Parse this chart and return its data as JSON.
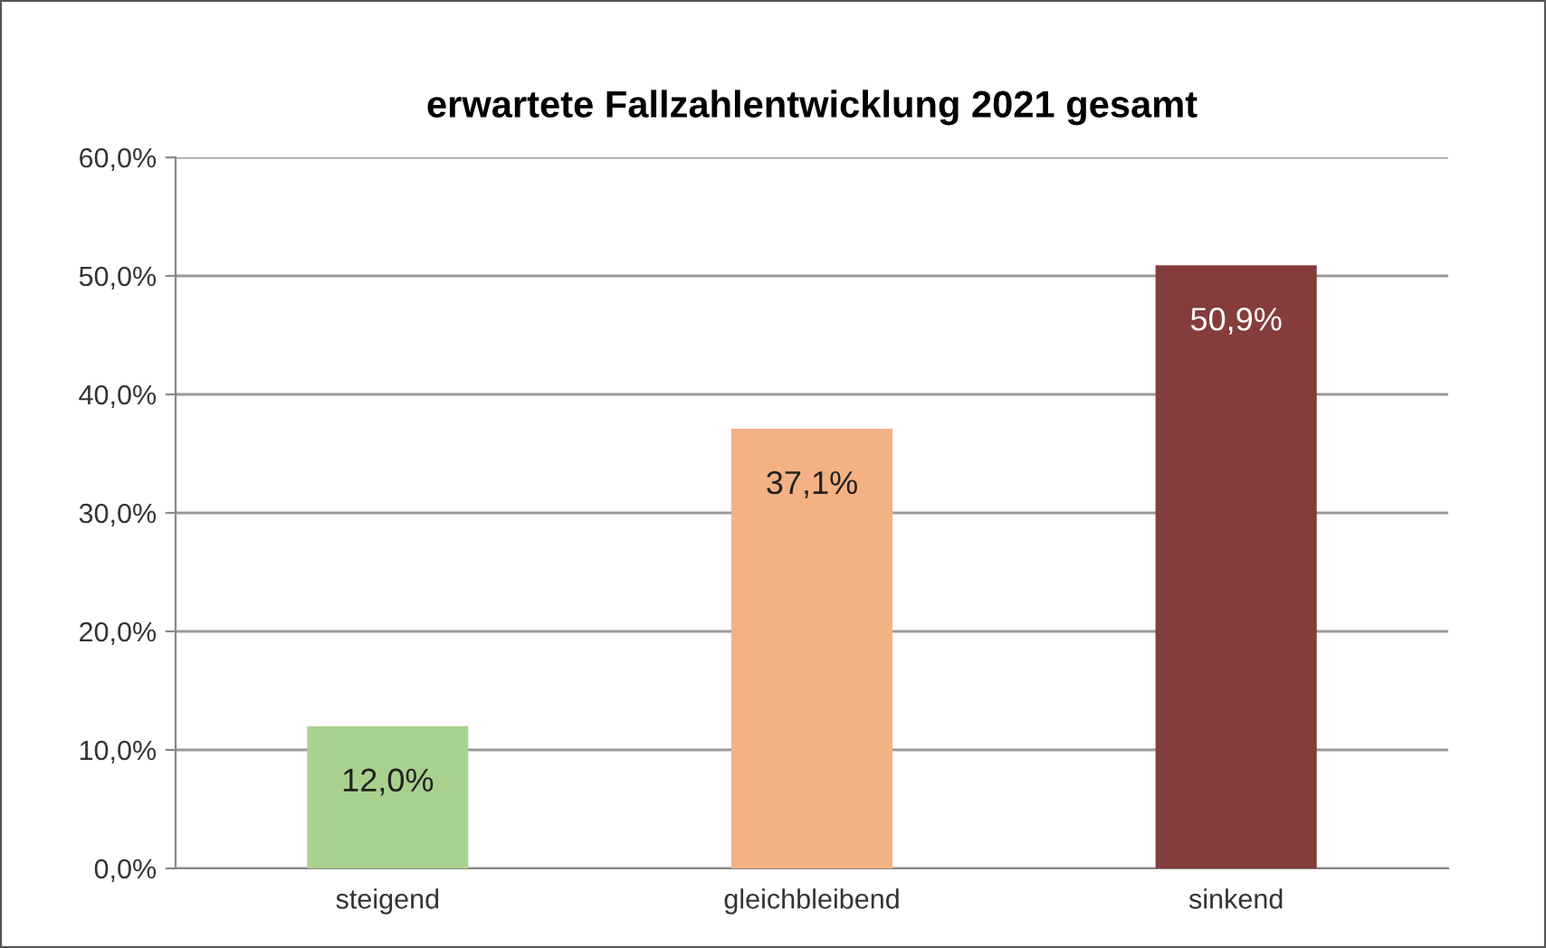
{
  "chart_data": {
    "type": "bar",
    "title": "erwartete Fallzahlentwicklung 2021 gesamt",
    "categories": [
      "steigend",
      "gleichbleibend",
      "sinkend"
    ],
    "values": [
      12.0,
      37.1,
      50.9
    ],
    "colors": [
      "#a9d18e",
      "#f4b183",
      "#843c3c"
    ],
    "value_labels": [
      "12,0%",
      "37,1%",
      "50,9%"
    ],
    "ylim": [
      0,
      60
    ],
    "yticks": [
      {
        "value": 0,
        "label": "0,0%"
      },
      {
        "value": 10,
        "label": "10,0%"
      },
      {
        "value": 20,
        "label": "20,0%"
      },
      {
        "value": 30,
        "label": "30,0%"
      },
      {
        "value": 40,
        "label": "40,0%"
      },
      {
        "value": 50,
        "label": "50,0%"
      },
      {
        "value": 60,
        "label": "60,0%"
      }
    ],
    "grid": "y"
  }
}
